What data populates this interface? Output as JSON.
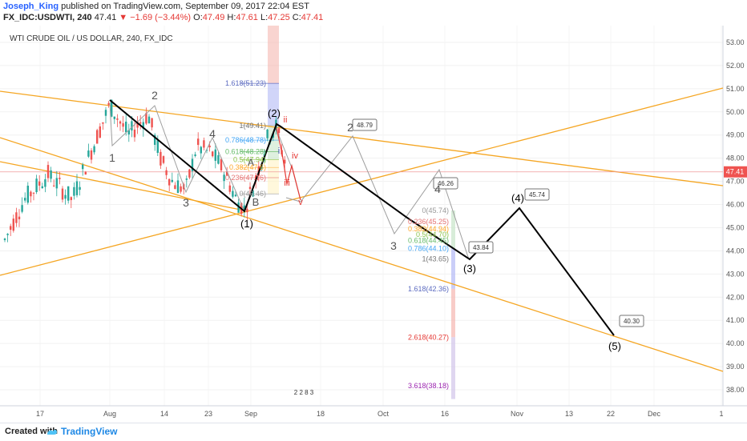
{
  "header": {
    "author": "Joseph_King",
    "published": "published on TradingView.com, September 09, 2017 22:04 EST",
    "symbol": "FX_IDC:USDWTI, 240",
    "last": "47.41",
    "change": "−1.69 (−3.44%)",
    "o_label": "O:",
    "o": "47.49",
    "h_label": "H:",
    "h": "47.61",
    "l_label": "L:",
    "l": "47.25",
    "c_label": "C:",
    "c": "47.41"
  },
  "chart_title": "WTI CRUDE OIL / US DOLLAR, 240, FX_IDC",
  "footer": {
    "created_with": "Created with",
    "brand": "TradingView"
  },
  "colors": {
    "up": "#26a69a",
    "down": "#ef5350",
    "trendline": "#f5a623",
    "wave": "#000000",
    "projection": "#9e9e9e",
    "price_tag": "#ef5350"
  },
  "chart_data": {
    "type": "line",
    "ylim": [
      37.5,
      53.5
    ],
    "xlim": [
      0,
      902
    ],
    "y_ticks": [
      "53.00",
      "52.00",
      "51.00",
      "50.00",
      "49.00",
      "48.00",
      "47.00",
      "46.00",
      "45.00",
      "44.00",
      "43.00",
      "42.00",
      "41.00",
      "40.00",
      "39.00",
      "38.00"
    ],
    "x_ticks": [
      "17",
      "Aug",
      "14",
      "23",
      "Sep",
      "18",
      "Oct",
      "16",
      "Nov",
      "13",
      "22",
      "Dec",
      "1"
    ],
    "last_price_tag": "47.41",
    "candles_summary": "OHLC candles July–Sep 2017, range ~44–50.4",
    "elliott_main": {
      "name": "",
      "points": [
        {
          "label": "(1)",
          "y": 45.7
        },
        {
          "label": "(2)",
          "y": 49.41
        },
        {
          "label": "(3)",
          "y": 43.65
        },
        {
          "label": "(4)",
          "y": 45.74
        },
        {
          "label": "(5)",
          "y": 40.3
        }
      ]
    },
    "wave_annotations": [
      "1",
      "2",
      "3",
      "4",
      "A",
      "B",
      "i",
      "ii",
      "iii",
      "iv",
      "v",
      "2",
      "3",
      "4"
    ],
    "target_boxes": [
      "48.79",
      "46.26",
      "43.84",
      "45.74",
      "40.30"
    ],
    "fib_left": [
      {
        "ratio": "1.618",
        "value": "51.23"
      },
      {
        "ratio": "1",
        "value": "49.41"
      },
      {
        "ratio": "0.786",
        "value": "48.78"
      },
      {
        "ratio": "0.618",
        "value": "48.28"
      },
      {
        "ratio": "0.5",
        "value": "47.94"
      },
      {
        "ratio": "0.382",
        "value": "47.6"
      },
      {
        "ratio": "0.236",
        "value": "47.16"
      },
      {
        "ratio": "0",
        "value": "46.46"
      }
    ],
    "fib_right": [
      {
        "ratio": "0",
        "value": "45.74"
      },
      {
        "ratio": "0.236",
        "value": "45.25"
      },
      {
        "ratio": "0.382",
        "value": "44.94"
      },
      {
        "ratio": "0.5",
        "value": "44.70"
      },
      {
        "ratio": "0.618",
        "value": "44.45"
      },
      {
        "ratio": "0.786",
        "value": "44.10"
      },
      {
        "ratio": "1",
        "value": "43.65"
      },
      {
        "ratio": "1.618",
        "value": "42.36"
      },
      {
        "ratio": "2.618",
        "value": "40.27"
      },
      {
        "ratio": "3.618",
        "value": "38.18"
      }
    ],
    "small_marker": "2 2 8 3"
  }
}
